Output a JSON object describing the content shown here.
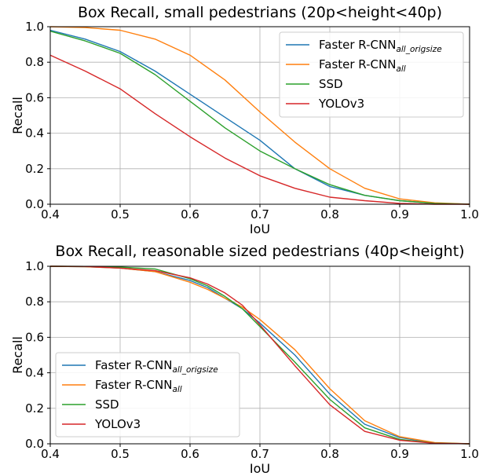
{
  "chart_data": [
    {
      "type": "line",
      "title": "Box Recall, small pedestrians (20p<height<40p)",
      "xlabel": "IoU",
      "ylabel": "Recall",
      "xlim": [
        0.4,
        1.0
      ],
      "ylim": [
        0.0,
        1.0
      ],
      "x_ticks": [
        "0.4",
        "0.5",
        "0.6",
        "0.7",
        "0.8",
        "0.9",
        "1.0"
      ],
      "y_ticks": [
        "0.0",
        "0.2",
        "0.4",
        "0.6",
        "0.8",
        "1.0"
      ],
      "grid": true,
      "legend_position": "top-right",
      "x": [
        0.4,
        0.45,
        0.5,
        0.55,
        0.6,
        0.65,
        0.7,
        0.75,
        0.8,
        0.85,
        0.9,
        0.95,
        1.0
      ],
      "series": [
        {
          "label_main": "Faster R-CNN",
          "label_sub": "all_origsize",
          "color": "#1f77b4",
          "values": [
            0.98,
            0.93,
            0.86,
            0.75,
            0.62,
            0.49,
            0.36,
            0.2,
            0.1,
            0.05,
            0.02,
            0.005,
            0.0
          ]
        },
        {
          "label_main": "Faster R-CNN",
          "label_sub": "all",
          "color": "#ff7f0e",
          "values": [
            1.0,
            0.995,
            0.98,
            0.93,
            0.84,
            0.7,
            0.52,
            0.35,
            0.2,
            0.09,
            0.03,
            0.008,
            0.0
          ]
        },
        {
          "label_main": "SSD",
          "label_sub": "",
          "color": "#2ca02c",
          "values": [
            0.975,
            0.92,
            0.85,
            0.73,
            0.58,
            0.43,
            0.3,
            0.2,
            0.11,
            0.05,
            0.02,
            0.005,
            0.0
          ]
        },
        {
          "label_main": "YOLOv3",
          "label_sub": "",
          "color": "#d62728",
          "values": [
            0.84,
            0.75,
            0.65,
            0.51,
            0.38,
            0.26,
            0.16,
            0.09,
            0.04,
            0.02,
            0.005,
            0.0,
            0.0
          ]
        }
      ]
    },
    {
      "type": "line",
      "title": "Box Recall, reasonable sized pedestrians (40p<height)",
      "xlabel": "IoU",
      "ylabel": "Recall",
      "xlim": [
        0.4,
        1.0
      ],
      "ylim": [
        0.0,
        1.0
      ],
      "x_ticks": [
        "0.4",
        "0.5",
        "0.6",
        "0.7",
        "0.8",
        "0.9",
        "1.0"
      ],
      "y_ticks": [
        "0.0",
        "0.2",
        "0.4",
        "0.6",
        "0.8",
        "1.0"
      ],
      "grid": true,
      "legend_position": "bottom-left",
      "x": [
        0.4,
        0.45,
        0.5,
        0.55,
        0.6,
        0.625,
        0.65,
        0.675,
        0.7,
        0.75,
        0.8,
        0.85,
        0.9,
        0.95,
        1.0
      ],
      "series": [
        {
          "label_main": "Faster R-CNN",
          "label_sub": "all_origsize",
          "color": "#1f77b4",
          "values": [
            1.0,
            0.998,
            0.99,
            0.97,
            0.92,
            0.88,
            0.82,
            0.76,
            0.68,
            0.5,
            0.28,
            0.11,
            0.035,
            0.005,
            0.0
          ]
        },
        {
          "label_main": "Faster R-CNN",
          "label_sub": "all",
          "color": "#ff7f0e",
          "values": [
            1.0,
            0.998,
            0.99,
            0.97,
            0.91,
            0.87,
            0.82,
            0.77,
            0.7,
            0.53,
            0.31,
            0.13,
            0.04,
            0.007,
            0.0
          ]
        },
        {
          "label_main": "SSD",
          "label_sub": "",
          "color": "#2ca02c",
          "values": [
            1.0,
            0.999,
            0.995,
            0.985,
            0.93,
            0.89,
            0.83,
            0.76,
            0.66,
            0.46,
            0.25,
            0.09,
            0.025,
            0.004,
            0.0
          ]
        },
        {
          "label_main": "YOLOv3",
          "label_sub": "",
          "color": "#d62728",
          "values": [
            1.0,
            0.999,
            0.99,
            0.975,
            0.935,
            0.9,
            0.85,
            0.78,
            0.67,
            0.44,
            0.22,
            0.07,
            0.02,
            0.003,
            0.0
          ]
        }
      ]
    }
  ]
}
